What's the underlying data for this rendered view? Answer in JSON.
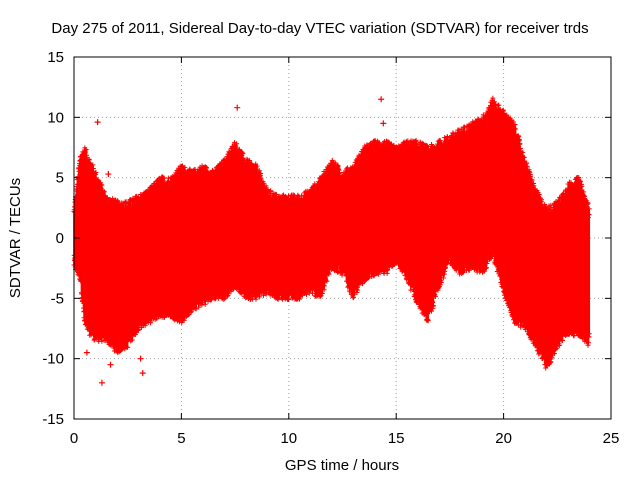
{
  "chart_data": {
    "type": "scatter",
    "title": "Day 275 of 2011, Sidereal Day-to-day VTEC variation (SDTVAR) for receiver trds",
    "xlabel": "GPS time / hours",
    "ylabel": "SDTVAR / TECUs",
    "xlim": [
      0,
      25
    ],
    "ylim": [
      -15,
      15
    ],
    "xticks": [
      0,
      5,
      10,
      15,
      20,
      25
    ],
    "yticks": [
      -15,
      -10,
      -5,
      0,
      5,
      10,
      15
    ],
    "xtick_labels": [
      "0",
      "5",
      "10",
      "15",
      "20",
      "25"
    ],
    "ytick_labels": [
      "-15",
      "-10",
      "-5",
      "0",
      "5",
      "10",
      "15"
    ],
    "grid": true,
    "marker": "+",
    "color": "#ff0000",
    "series": [
      {
        "name": "SDTVAR",
        "envelope_x": [
          0,
          0.3,
          0.5,
          1,
          1.5,
          2,
          2.5,
          3,
          3.5,
          4,
          4.5,
          5,
          5.5,
          6,
          6.5,
          7,
          7.5,
          8,
          8.5,
          9,
          9.5,
          10,
          10.5,
          11,
          11.5,
          12,
          12.5,
          13,
          13.5,
          14,
          14.5,
          15,
          15.5,
          16,
          16.5,
          17,
          17.5,
          18,
          18.5,
          19,
          19.5,
          20,
          20.5,
          21,
          21.5,
          22,
          22.5,
          23,
          23.5,
          24
        ],
        "envelope_upper": [
          2.0,
          6.5,
          7.0,
          5.0,
          3.0,
          2.5,
          2.5,
          3.0,
          3.5,
          4.5,
          4.5,
          5.5,
          5.0,
          5.5,
          5.0,
          6.0,
          7.5,
          6.0,
          5.5,
          3.5,
          3.0,
          3.0,
          3.0,
          3.5,
          4.5,
          6.0,
          5.0,
          5.5,
          7.0,
          7.5,
          7.5,
          7.0,
          7.5,
          7.5,
          7.0,
          7.5,
          8.0,
          8.5,
          9.0,
          9.5,
          11.0,
          10.0,
          9.0,
          6.0,
          3.5,
          2.0,
          2.5,
          4.0,
          4.5,
          2.0
        ],
        "envelope_lower": [
          -2.0,
          -3.0,
          -7.0,
          -8.0,
          -8.0,
          -9.0,
          -8.5,
          -7.0,
          -6.5,
          -6.0,
          -6.0,
          -6.5,
          -5.5,
          -5.0,
          -4.5,
          -4.5,
          -3.5,
          -4.5,
          -4.5,
          -4.0,
          -4.5,
          -4.5,
          -4.5,
          -4.0,
          -4.5,
          -2.0,
          -2.5,
          -4.5,
          -3.0,
          -2.5,
          -2.5,
          -1.5,
          -3.0,
          -5.0,
          -6.5,
          -3.5,
          -1.5,
          -2.5,
          -2.0,
          -2.5,
          -1.0,
          -4.0,
          -6.5,
          -7.0,
          -8.5,
          -10.5,
          -8.5,
          -7.5,
          -7.5,
          -8.5
        ],
        "outliers": [
          {
            "x": 1.1,
            "y": 9.6
          },
          {
            "x": 1.3,
            "y": -12.0
          },
          {
            "x": 0.6,
            "y": -9.5
          },
          {
            "x": 1.6,
            "y": 5.3
          },
          {
            "x": 1.7,
            "y": -10.5
          },
          {
            "x": 3.2,
            "y": -11.2
          },
          {
            "x": 3.1,
            "y": -10.0
          },
          {
            "x": 7.6,
            "y": 10.8
          },
          {
            "x": 14.3,
            "y": 11.5
          },
          {
            "x": 14.4,
            "y": 9.5
          }
        ]
      }
    ]
  }
}
